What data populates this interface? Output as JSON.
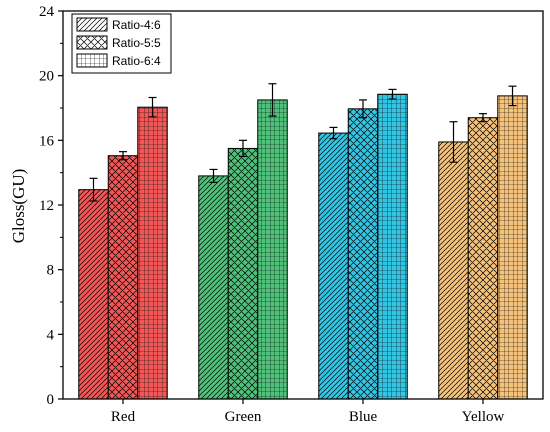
{
  "chart_data": {
    "type": "bar",
    "categories": [
      "Red",
      "Green",
      "Blue",
      "Yellow"
    ],
    "series": [
      {
        "name": "Ratio-4:6",
        "pattern": "diagonal",
        "values": [
          12.95,
          13.8,
          16.45,
          15.9
        ],
        "errors": [
          0.7,
          0.4,
          0.35,
          1.25
        ]
      },
      {
        "name": "Ratio-5:5",
        "pattern": "crosshatch",
        "values": [
          15.05,
          15.5,
          17.95,
          17.4
        ],
        "errors": [
          0.25,
          0.5,
          0.55,
          0.25
        ]
      },
      {
        "name": "Ratio-6:4",
        "pattern": "grid",
        "values": [
          18.05,
          18.5,
          18.85,
          18.75
        ],
        "errors": [
          0.6,
          1.0,
          0.3,
          0.6
        ]
      }
    ],
    "category_colors": {
      "Red": "#f25757",
      "Green": "#4fc17a",
      "Blue": "#33c5e3",
      "Yellow": "#f5c27c"
    },
    "xlabel": "",
    "ylabel": "Gloss(GU)",
    "ylim": [
      0,
      24
    ],
    "yticks": [
      0,
      4,
      8,
      12,
      16,
      20,
      24
    ],
    "grid": false,
    "legend": "top-left"
  }
}
